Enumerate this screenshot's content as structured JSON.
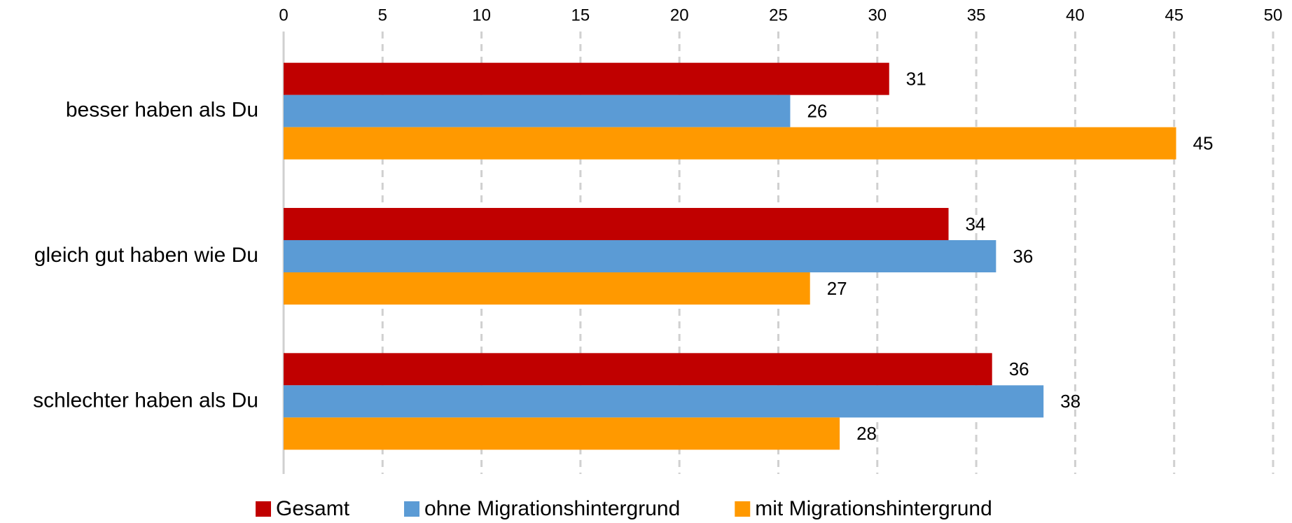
{
  "chart_data": {
    "type": "barh",
    "categories": [
      "besser haben als Du",
      "gleich gut haben wie Du",
      "schlechter haben als Du"
    ],
    "series": [
      {
        "name": "Gesamt",
        "color": "#c00000",
        "values": [
          30.6,
          33.6,
          35.8
        ],
        "value_labels": [
          "31",
          "34",
          "36"
        ]
      },
      {
        "name": "ohne Migrationshintergrund",
        "color": "#5b9bd5",
        "values": [
          25.6,
          36.0,
          38.4
        ],
        "value_labels": [
          "26",
          "36",
          "38"
        ]
      },
      {
        "name": "mit Migrationshintergrund",
        "color": "#ff9900",
        "values": [
          45.1,
          26.6,
          28.1
        ],
        "value_labels": [
          "45",
          "27",
          "28"
        ]
      }
    ],
    "xlim": [
      0,
      50
    ],
    "xticks": [
      0,
      5,
      10,
      15,
      20,
      25,
      30,
      35,
      40,
      45,
      50
    ],
    "grid": true,
    "legend": "bottom"
  }
}
